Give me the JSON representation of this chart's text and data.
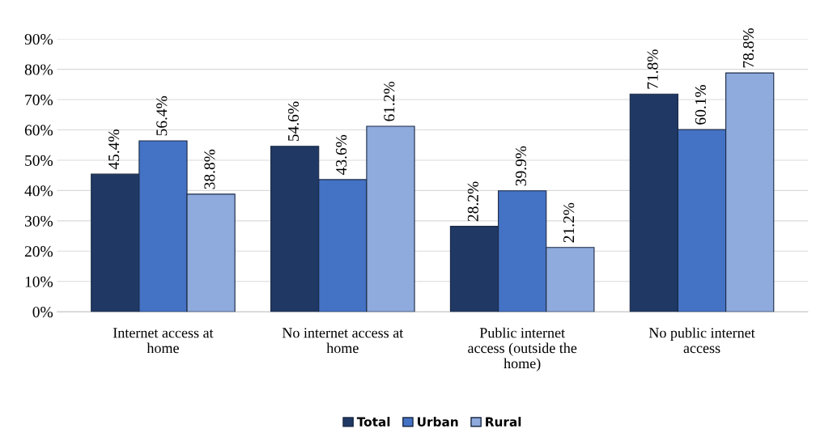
{
  "chart_data": {
    "type": "bar",
    "categories": [
      "Internet access at\nhome",
      "No internet access at\nhome",
      "Public internet\naccess (outside the\nhome)",
      "No public internet\naccess"
    ],
    "series": [
      {
        "name": "Total",
        "color": "#203864",
        "values": [
          45.4,
          54.6,
          28.2,
          71.8
        ],
        "value_labels": [
          "45.4%",
          "54.6%",
          "28.2%",
          "71.8%"
        ]
      },
      {
        "name": "Urban",
        "color": "#4472c4",
        "values": [
          56.4,
          43.6,
          39.9,
          60.1
        ],
        "value_labels": [
          "56.4%",
          "43.6%",
          "39.9%",
          "60.1%"
        ]
      },
      {
        "name": "Rural",
        "color": "#8faadc",
        "values": [
          38.8,
          61.2,
          21.2,
          78.8
        ],
        "value_labels": [
          "38.8%",
          "61.2%",
          "21.2%",
          "78.8%"
        ]
      }
    ],
    "ylim": [
      0,
      90
    ],
    "yticks": [
      {
        "value": 0,
        "label": "0%"
      },
      {
        "value": 10,
        "label": "10%"
      },
      {
        "value": 20,
        "label": "20%"
      },
      {
        "value": 30,
        "label": "30%"
      },
      {
        "value": 40,
        "label": "40%"
      },
      {
        "value": 50,
        "label": "50%"
      },
      {
        "value": 60,
        "label": "60%"
      },
      {
        "value": 70,
        "label": "70%"
      },
      {
        "value": 80,
        "label": "80%"
      },
      {
        "value": 90,
        "label": "90%"
      }
    ],
    "grid": "y",
    "legend": "bottom"
  }
}
